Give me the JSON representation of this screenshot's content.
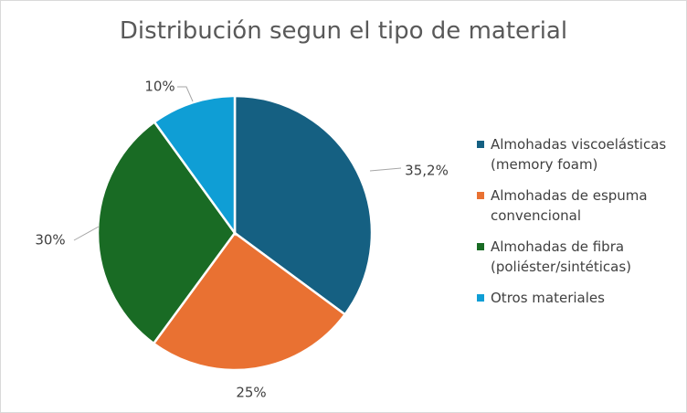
{
  "chart_data": {
    "type": "pie",
    "title": "Distribución segun el tipo de material",
    "legend_position": "right",
    "slices": [
      {
        "name": "Almohadas viscoelásticas (memory foam)",
        "value": 35.2,
        "label": "35,2%",
        "color": "#156082"
      },
      {
        "name": "Almohadas de espuma convencional",
        "value": 25,
        "label": "25%",
        "color": "#E97132"
      },
      {
        "name": "Almohadas de fibra (poliéster/sintéticas)",
        "value": 30,
        "label": "30%",
        "color": "#196B24"
      },
      {
        "name": "Otros materiales",
        "value": 10,
        "label": "10%",
        "color": "#0F9ED5"
      }
    ]
  }
}
